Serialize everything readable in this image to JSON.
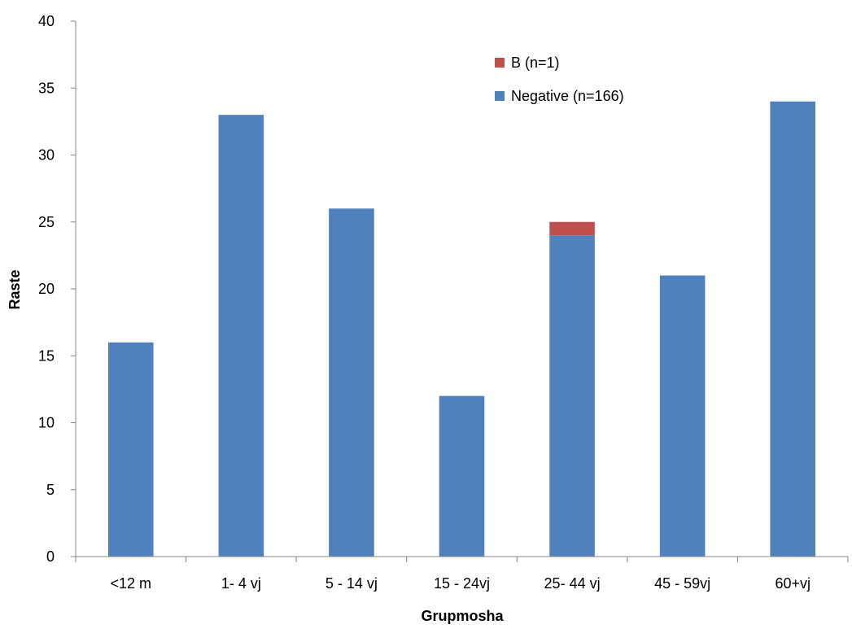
{
  "chart_data": {
    "type": "bar",
    "stacked": true,
    "categories": [
      "<12 m",
      "1- 4 vj",
      "5 - 14 vj",
      "15 - 24vj",
      "25- 44 vj",
      "45 - 59vj",
      "60+vj"
    ],
    "series": [
      {
        "name": "Negative (n=166)",
        "color": "#4F81BD",
        "values": [
          16,
          33,
          26,
          12,
          24,
          21,
          34
        ]
      },
      {
        "name": "B (n=1)",
        "color": "#C0504D",
        "values": [
          0,
          0,
          0,
          0,
          1,
          0,
          0
        ]
      }
    ],
    "title": "",
    "xlabel": "Grupmosha",
    "ylabel": "Raste",
    "ylim": [
      0,
      40
    ],
    "yticks": [
      0,
      5,
      10,
      15,
      20,
      25,
      30,
      35,
      40
    ],
    "grid": false,
    "legend_position": "top-right",
    "legend_order": [
      "B (n=1)",
      "Negative (n=166)"
    ]
  }
}
